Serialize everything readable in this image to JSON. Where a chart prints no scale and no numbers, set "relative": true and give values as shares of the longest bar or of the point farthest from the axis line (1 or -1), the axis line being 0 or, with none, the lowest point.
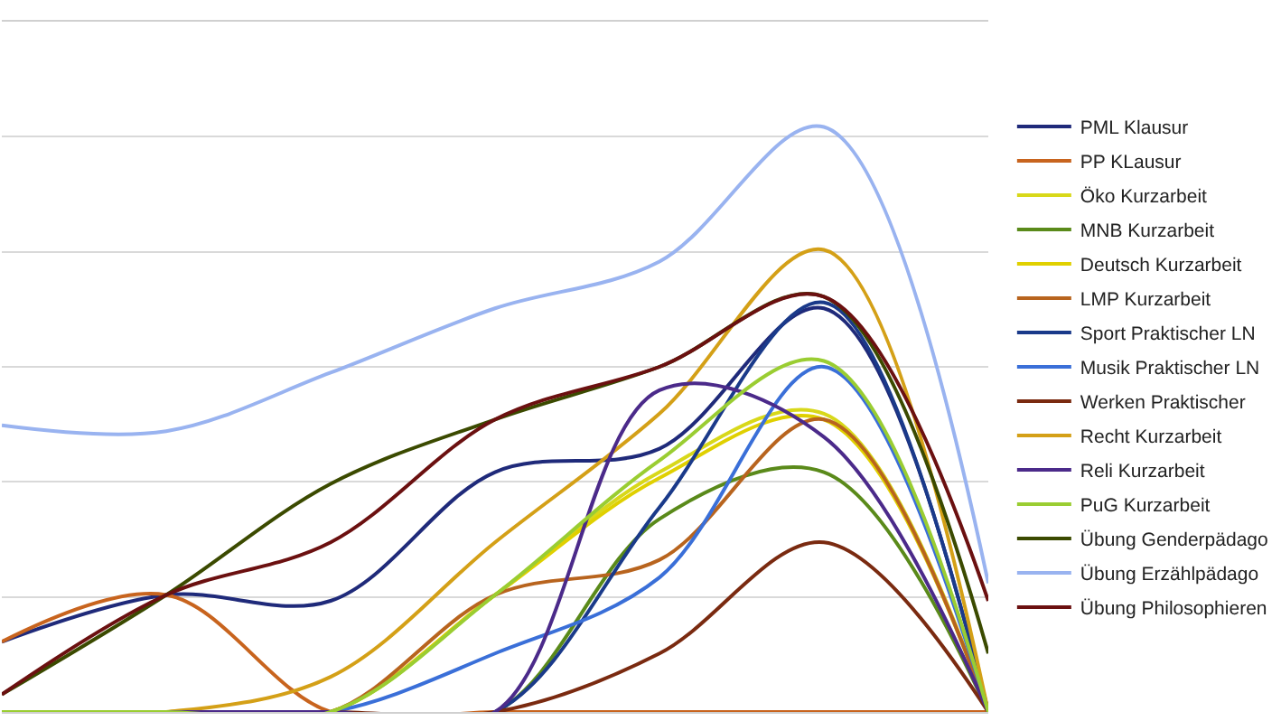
{
  "chart_data": {
    "type": "line",
    "relative": true,
    "grid": "y",
    "legend": "right",
    "marker": "none",
    "line_style": "solid",
    "categories": [
      null,
      null,
      null,
      null,
      null,
      null,
      null
    ],
    "series": [
      {
        "name": "PML Klausur",
        "color": "#1f2a7a",
        "values": [
          0.12,
          0.2,
          0.19,
          0.41,
          0.45,
          0.69,
          0
        ]
      },
      {
        "name": "PP KLausur",
        "color": "#c8641e",
        "values": [
          0.12,
          0.2,
          0,
          0,
          0,
          0,
          0
        ]
      },
      {
        "name": "Öko Kurzarbeit",
        "color": "#d8d81a",
        "values": [
          0,
          0,
          0,
          0.2,
          0.41,
          0.51,
          0
        ]
      },
      {
        "name": "MNB Kurzarbeit",
        "color": "#5a8a1a",
        "values": [
          0,
          0,
          0,
          0,
          0.33,
          0.41,
          0
        ]
      },
      {
        "name": "Deutsch Kurzarbeit",
        "color": "#e0d000",
        "values": [
          0,
          0,
          0,
          0.2,
          0.4,
          0.5,
          0
        ]
      },
      {
        "name": "LMP Kurzarbeit",
        "color": "#b8641e",
        "values": [
          0,
          0,
          0,
          0.2,
          0.26,
          0.5,
          0
        ]
      },
      {
        "name": "Sport Praktischer LN",
        "color": "#1a3a8a",
        "values": [
          0,
          0,
          0,
          0,
          0.35,
          0.7,
          0
        ]
      },
      {
        "name": "Musik Praktischer LN",
        "color": "#3a6fd8",
        "values": [
          0,
          0,
          0,
          0.1,
          0.23,
          0.59,
          0
        ]
      },
      {
        "name": "Werken Praktischer",
        "color": "#7a2a10",
        "values": [
          0,
          0,
          0,
          0,
          0.1,
          0.29,
          0
        ]
      },
      {
        "name": "Recht Kurzarbeit",
        "color": "#d4a017",
        "values": [
          0,
          0,
          0.06,
          0.29,
          0.51,
          0.79,
          0
        ]
      },
      {
        "name": "Reli Kurzarbeit",
        "color": "#4b2a8a",
        "values": [
          0,
          0,
          0,
          0,
          0.55,
          0.47,
          0
        ]
      },
      {
        "name": "PuG Kurzarbeit",
        "color": "#9acd32",
        "values": [
          0,
          0,
          0,
          0.2,
          0.43,
          0.6,
          0
        ]
      },
      {
        "name": "Übung Genderpädago",
        "color": "#3b4a00",
        "values": [
          0.03,
          0.2,
          0.39,
          0.5,
          0.59,
          0.71,
          0.1
        ]
      },
      {
        "name": "Übung Erzählpädago",
        "color": "#99b3f0",
        "values": [
          0.49,
          0.48,
          0.58,
          0.69,
          0.77,
          1,
          0.22
        ]
      },
      {
        "name": "Übung Philosophieren",
        "color": "#6b1010",
        "values": [
          0.03,
          0.2,
          0.29,
          0.5,
          0.59,
          0.71,
          0.19
        ]
      }
    ]
  }
}
